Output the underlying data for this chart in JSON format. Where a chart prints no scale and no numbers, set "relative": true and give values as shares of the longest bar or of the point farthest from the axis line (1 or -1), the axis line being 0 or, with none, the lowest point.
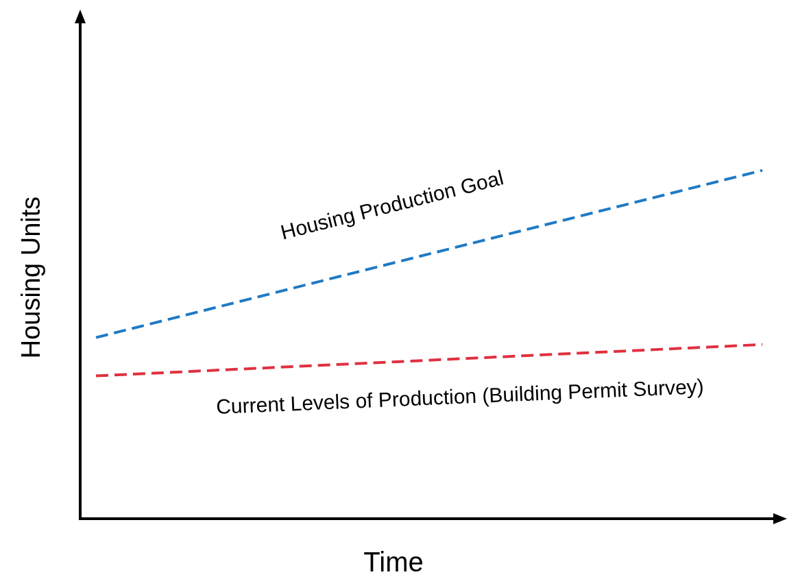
{
  "chart_data": {
    "type": "line",
    "xlabel": "Time",
    "ylabel": "Housing Units",
    "relative": true,
    "categories": [
      null,
      null
    ],
    "series": [
      {
        "name": "Housing Production Goal",
        "color": "#1f7ac4",
        "values": [
          0.52,
          1
        ]
      },
      {
        "name": "Current Levels of Production (Building Permit Survey)",
        "color": "#e0303f",
        "values": [
          0.41,
          0.5
        ]
      }
    ],
    "legend": false,
    "marker": "none",
    "line_style": "dashed"
  }
}
